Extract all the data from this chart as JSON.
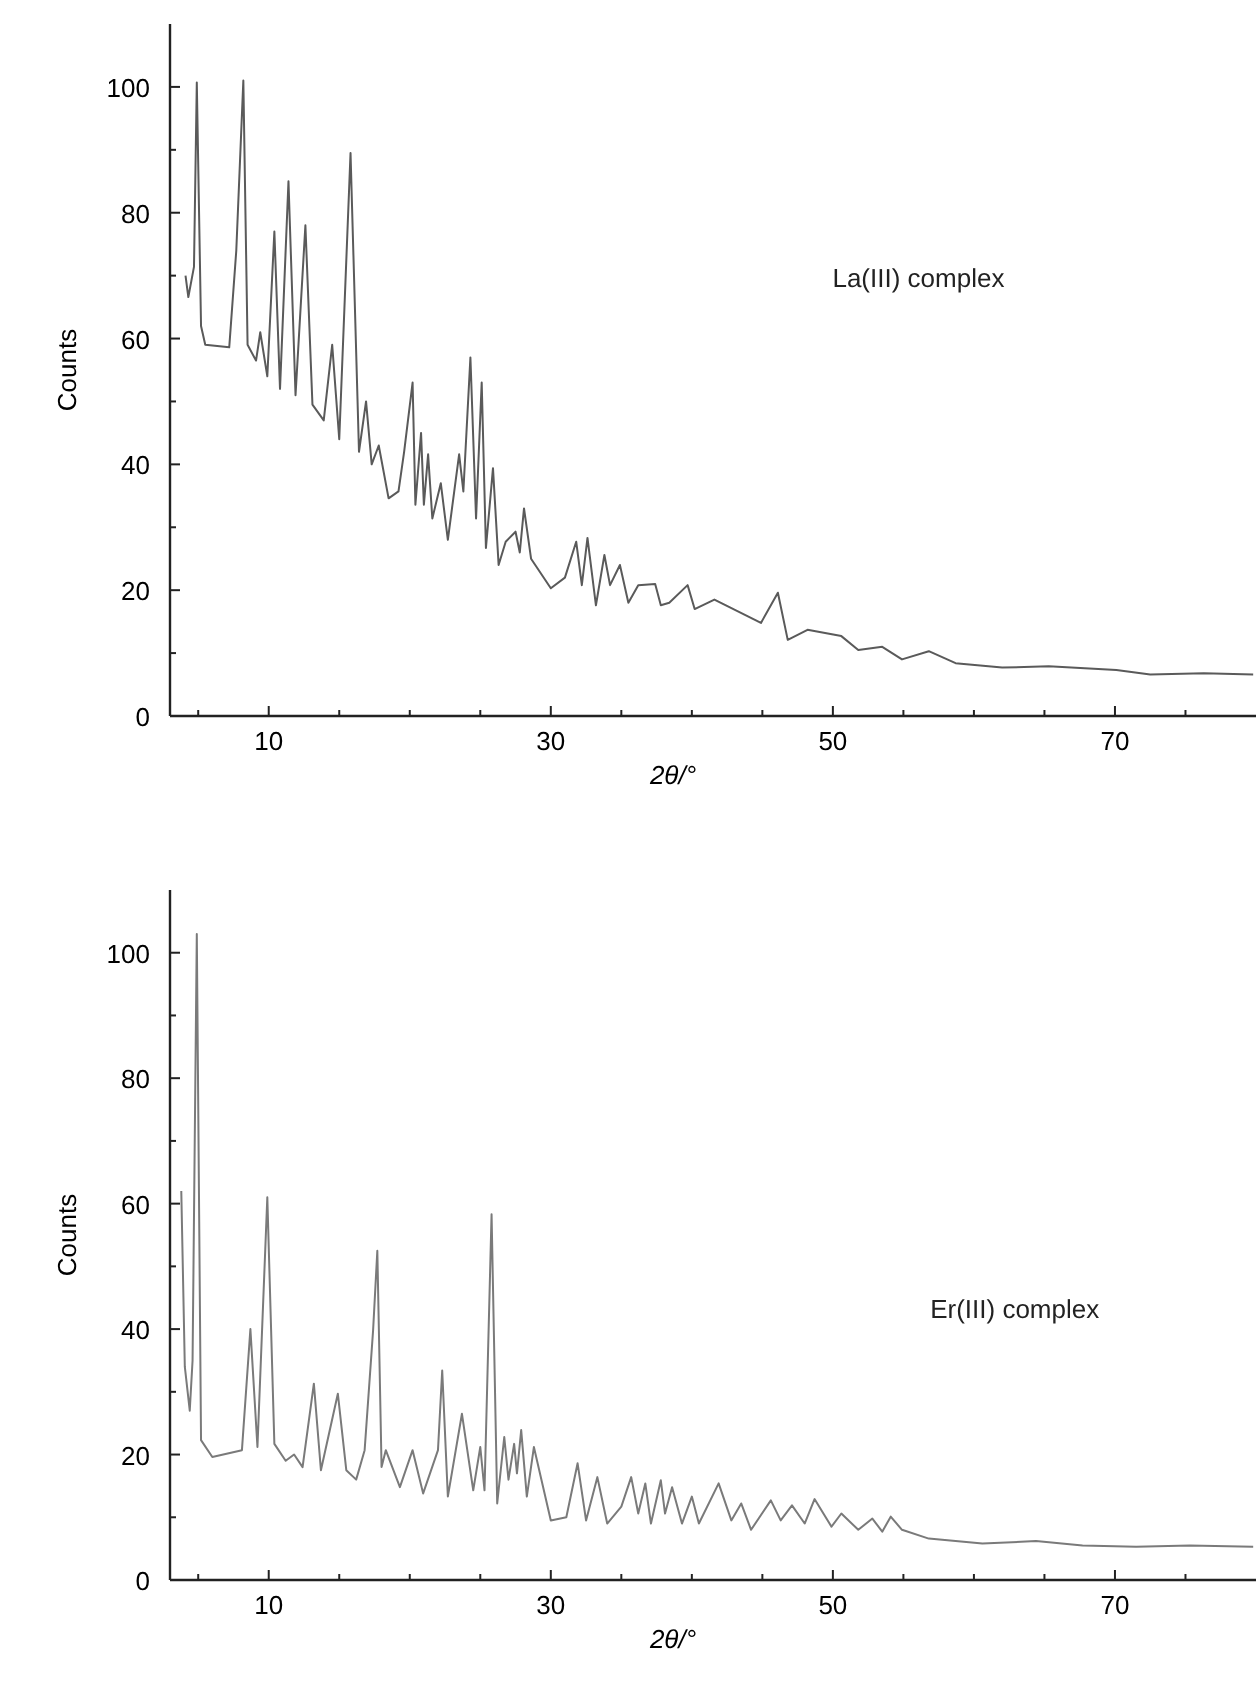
{
  "chart_data": [
    {
      "type": "line",
      "xlabel": "2θ/°",
      "ylabel": "Counts",
      "xlim": [
        3,
        80
      ],
      "ylim": [
        0,
        110
      ],
      "xticks": [
        {
          "value": 5,
          "label": null
        },
        10,
        {
          "value": 15,
          "label": null
        },
        {
          "value": 20,
          "label": null
        },
        {
          "value": 25,
          "label": null
        },
        30,
        {
          "value": 35,
          "label": null
        },
        {
          "value": 40,
          "label": null
        },
        {
          "value": 45,
          "label": null
        },
        50,
        {
          "value": 55,
          "label": null
        },
        {
          "value": 60,
          "label": null
        },
        {
          "value": 65,
          "label": null
        },
        70,
        {
          "value": 75,
          "label": null
        }
      ],
      "yticks": [
        0,
        {
          "value": 10,
          "label": null
        },
        20,
        {
          "value": 30,
          "label": null
        },
        40,
        {
          "value": 50,
          "label": null
        },
        60,
        {
          "value": 70,
          "label": null
        },
        80,
        {
          "value": 90,
          "label": null
        },
        100
      ],
      "series": [
        {
          "name": "La(III) complex",
          "color": "#5a5a5a",
          "x": [
            4.1,
            4.3,
            4.7,
            4.9,
            5.2,
            5.5,
            7.2,
            7.7,
            8.2,
            8.5,
            9.1,
            9.4,
            9.9,
            10.4,
            10.8,
            11.4,
            11.9,
            12.6,
            13.1,
            13.9,
            14.5,
            15.0,
            15.8,
            16.4,
            16.9,
            17.3,
            17.8,
            18.5,
            19.2,
            19.6,
            20.2,
            20.4,
            20.8,
            21.0,
            21.3,
            21.6,
            22.2,
            22.7,
            23.5,
            23.8,
            24.3,
            24.7,
            25.1,
            25.4,
            25.9,
            26.3,
            26.8,
            27.5,
            27.8,
            28.1,
            28.6,
            30,
            31,
            31.8,
            32.2,
            32.6,
            33.2,
            33.8,
            34.2,
            34.9,
            35.5,
            36.2,
            37.4,
            37.8,
            38.4,
            39.7,
            40.2,
            41.6,
            44.9,
            46.1,
            46.8,
            48.2,
            50.6,
            51.8,
            53.5,
            54.9,
            56.8,
            58.7,
            62,
            65.3,
            70.1,
            72.5,
            76.3,
            79.8
          ],
          "values": [
            70,
            66.6,
            71.4,
            100.7,
            62,
            59,
            58.6,
            74,
            101,
            59,
            56.5,
            61,
            54,
            77,
            52,
            85,
            51,
            78,
            49.5,
            47,
            59,
            44,
            89.5,
            42,
            50,
            40,
            43,
            34.6,
            35.7,
            42,
            53,
            33.6,
            45,
            33.6,
            41.6,
            31.4,
            37,
            28,
            41.6,
            35.7,
            57,
            31.4,
            53,
            26.7,
            39.4,
            24,
            27.7,
            29.3,
            26,
            33,
            25,
            20.3,
            22,
            27.7,
            20.8,
            28.3,
            17.6,
            25.6,
            20.8,
            24,
            18,
            20.8,
            21,
            17.6,
            18,
            20.8,
            17,
            18.5,
            14.8,
            19.6,
            12.1,
            13.7,
            12.7,
            10.5,
            11,
            9,
            10.3,
            8.4,
            7.7,
            7.9,
            7.3,
            6.6,
            6.8,
            6.6
          ]
        }
      ]
    },
    {
      "type": "line",
      "xlabel": "2θ/°",
      "ylabel": "Counts",
      "xlim": [
        3,
        80
      ],
      "ylim": [
        0,
        110
      ],
      "xticks": [
        {
          "value": 5,
          "label": null
        },
        10,
        {
          "value": 15,
          "label": null
        },
        {
          "value": 20,
          "label": null
        },
        {
          "value": 25,
          "label": null
        },
        30,
        {
          "value": 35,
          "label": null
        },
        {
          "value": 40,
          "label": null
        },
        {
          "value": 45,
          "label": null
        },
        50,
        {
          "value": 55,
          "label": null
        },
        {
          "value": 60,
          "label": null
        },
        {
          "value": 65,
          "label": null
        },
        70,
        {
          "value": 75,
          "label": null
        }
      ],
      "yticks": [
        0,
        {
          "value": 10,
          "label": null
        },
        20,
        {
          "value": 30,
          "label": null
        },
        40,
        {
          "value": 50,
          "label": null
        },
        60,
        {
          "value": 70,
          "label": null
        },
        80,
        {
          "value": 90,
          "label": null
        },
        100
      ],
      "series": [
        {
          "name": "Er(III) complex",
          "color": "#7a7a7a",
          "x": [
            3.8,
            4.05,
            4.4,
            4.6,
            4.9,
            5.2,
            6.0,
            8.1,
            8.7,
            9.2,
            9.9,
            10.4,
            11.2,
            11.8,
            12.4,
            13.2,
            13.7,
            14.9,
            15.5,
            16.2,
            16.8,
            17.4,
            17.7,
            18.0,
            18.3,
            19.3,
            20.2,
            20.95,
            22.0,
            22.3,
            22.7,
            23.7,
            24.5,
            25,
            25.3,
            25.8,
            26.2,
            26.7,
            27.0,
            27.4,
            27.6,
            27.9,
            28.3,
            28.8,
            30,
            31.1,
            31.9,
            32.5,
            33.3,
            34,
            35,
            35.7,
            36.2,
            36.7,
            37.1,
            37.8,
            38.1,
            38.6,
            39.3,
            40,
            40.5,
            41.9,
            42.8,
            43.5,
            44.2,
            45.6,
            46.3,
            47.1,
            48,
            48.7,
            49.9,
            50.6,
            51.8,
            52.8,
            53.5,
            54.1,
            54.9,
            56.8,
            60.6,
            64.4,
            67.7,
            71.5,
            75.3,
            79.8
          ],
          "values": [
            62,
            34,
            27,
            35,
            103,
            22.3,
            19.6,
            20.7,
            40,
            21.2,
            61,
            21.7,
            19,
            20,
            18,
            31.3,
            17.5,
            29.7,
            17.5,
            16,
            20.7,
            39.8,
            52.5,
            18,
            20.7,
            14.8,
            20.7,
            13.8,
            20.7,
            33.4,
            13.3,
            26.5,
            14.3,
            21.2,
            14.3,
            58.3,
            12.2,
            22.8,
            16,
            21.7,
            17,
            23.9,
            13.3,
            21.2,
            9.5,
            10,
            18.6,
            9.5,
            16.4,
            9,
            11.7,
            16.4,
            10.6,
            15.4,
            9,
            15.9,
            10.6,
            14.8,
            9,
            13.3,
            9,
            15.4,
            9.5,
            12.2,
            8,
            12.7,
            9.5,
            11.9,
            9,
            12.9,
            8.5,
            10.6,
            8,
            9.8,
            7.7,
            10.1,
            8,
            6.6,
            5.8,
            6.2,
            5.5,
            5.3,
            5.5,
            5.3
          ]
        }
      ]
    }
  ]
}
